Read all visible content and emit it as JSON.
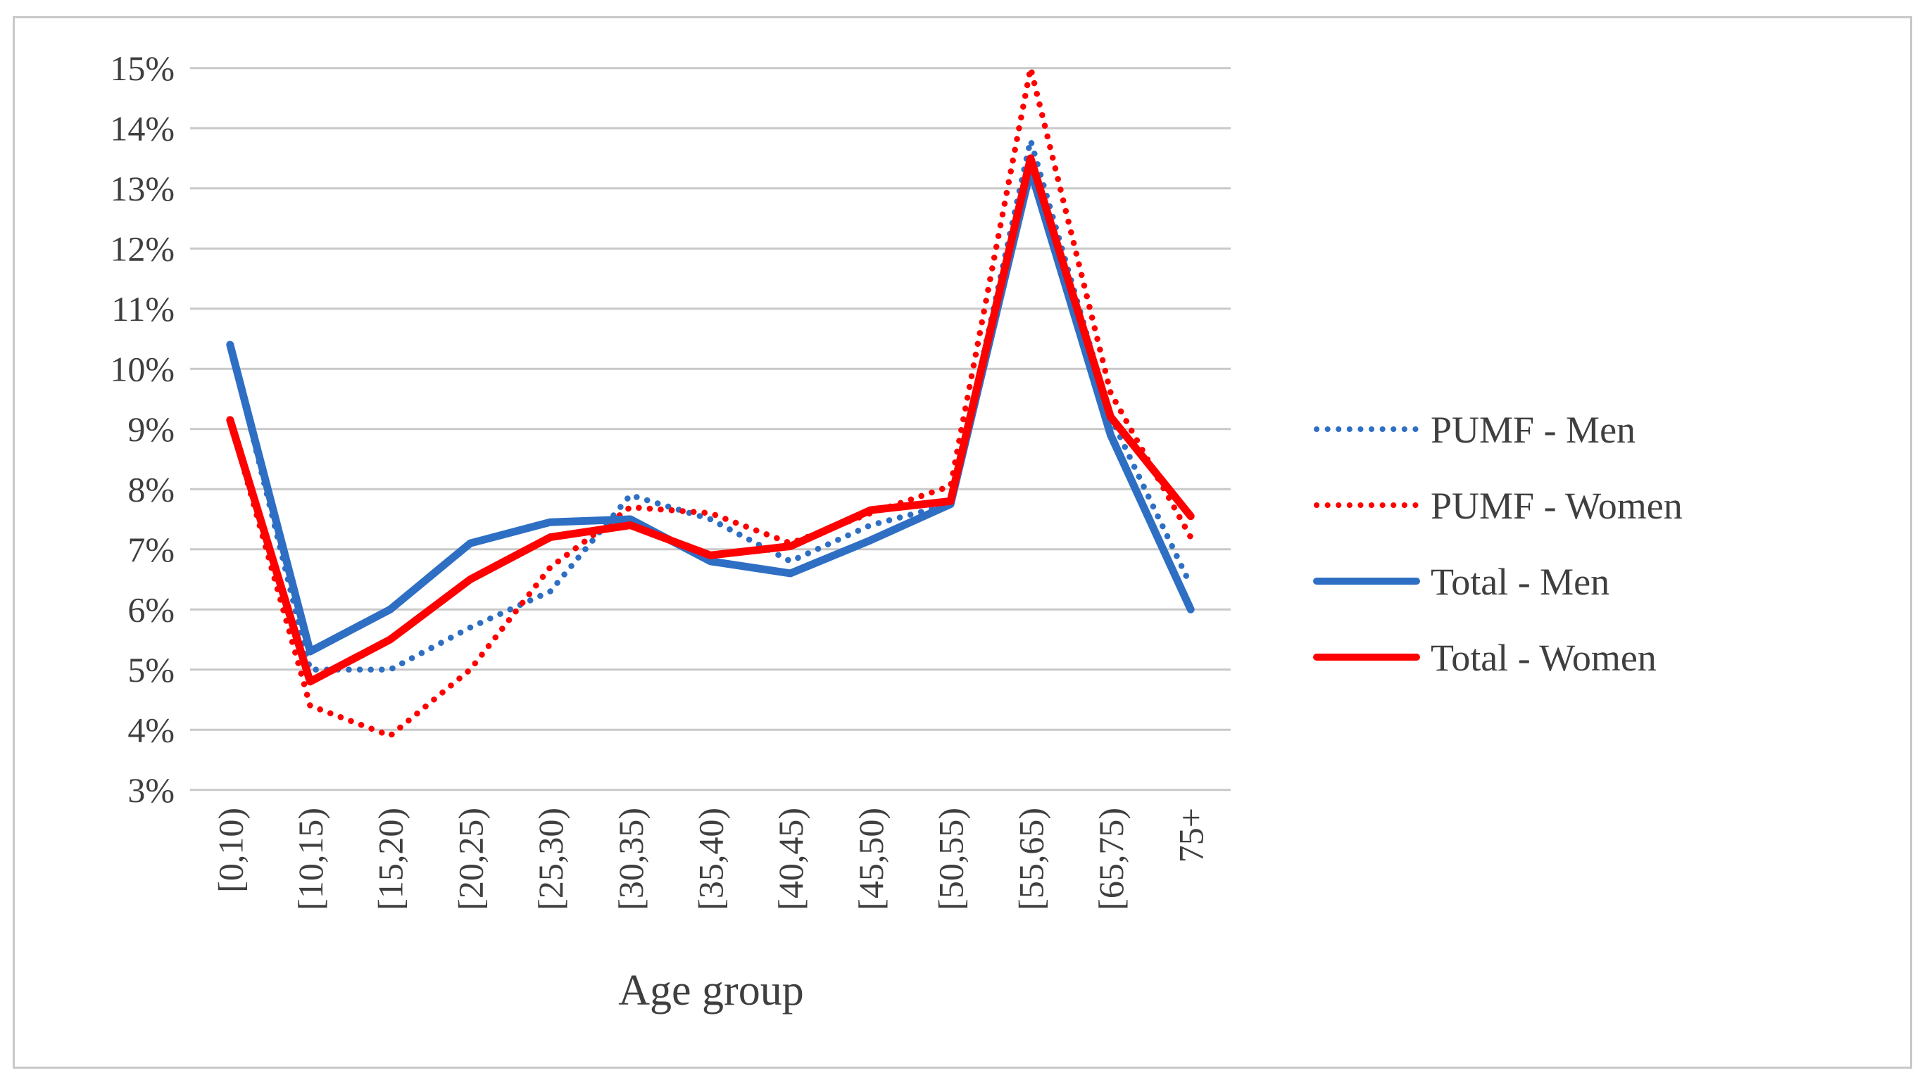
{
  "figure": {
    "background": "#ffffff",
    "border_color": "#c8c8c8"
  },
  "chart_data": {
    "type": "line",
    "title": "",
    "xlabel": "Age group",
    "ylabel": "",
    "grid": {
      "horizontal": true,
      "color": "#c9c9c9"
    },
    "text_color": "#3f3f3f",
    "legend_position": "right",
    "y_axis": {
      "min": 3,
      "max": 15,
      "step": 1,
      "tick_labels": [
        "15%",
        "14%",
        "13%",
        "12%",
        "11%",
        "10%",
        "9%",
        "8%",
        "7%",
        "6%",
        "5%",
        "4%",
        "3%"
      ]
    },
    "categories": [
      "[0,10)",
      "[10,15)",
      "[15,20)",
      "[20,25)",
      "[25,30)",
      "[30,35)",
      "[35,40)",
      "[40,45)",
      "[45,50)",
      "[50,55)",
      "[55,65)",
      "[65,75)",
      "75+"
    ],
    "series": [
      {
        "name": "PUMF - Men",
        "color": "#2e6fc4",
        "style": "dotted",
        "values": [
          10.4,
          5.0,
          5.0,
          5.7,
          6.3,
          7.9,
          7.5,
          6.8,
          7.4,
          7.75,
          13.8,
          9.2,
          6.4
        ]
      },
      {
        "name": "PUMF - Women",
        "color": "#fe0000",
        "style": "dotted",
        "values": [
          9.15,
          4.4,
          3.9,
          5.0,
          6.7,
          7.7,
          7.6,
          7.1,
          7.6,
          8.05,
          15.0,
          9.6,
          7.2
        ]
      },
      {
        "name": "Total - Men",
        "color": "#2e6fc4",
        "style": "solid",
        "values": [
          10.4,
          5.3,
          6.0,
          7.1,
          7.45,
          7.5,
          6.8,
          6.6,
          7.15,
          7.75,
          13.3,
          8.9,
          6.0
        ]
      },
      {
        "name": "Total - Women",
        "color": "#fe0000",
        "style": "solid",
        "values": [
          9.15,
          4.8,
          5.5,
          6.5,
          7.2,
          7.4,
          6.9,
          7.05,
          7.65,
          7.8,
          13.5,
          9.2,
          7.55
        ]
      }
    ]
  }
}
